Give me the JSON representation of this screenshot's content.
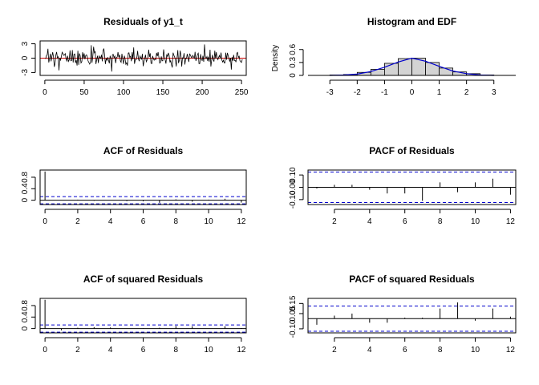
{
  "colors": {
    "resid_line": "#000000",
    "zero_line": "#cc0000",
    "conf_band": "#0000cc",
    "hist_fill": "#d3d3d3",
    "edf_line": "#0000cc"
  },
  "chart_data": [
    {
      "type": "line",
      "title": "Residuals of y1_t",
      "xticks": [
        0,
        50,
        100,
        150,
        200,
        250
      ],
      "yticks": [
        -3,
        0,
        3
      ],
      "xlim": [
        -6,
        256
      ],
      "ylim": [
        -3.6,
        3.6
      ],
      "n": 250,
      "zero_line": 0,
      "series": [
        {
          "values": [
            -0.16,
            0.5,
            0.67,
            1.96,
            -0.9,
            -0.1,
            0.93,
            -0.65,
            0.36,
            1.24,
            0.27,
            -1.82,
            -1.12,
            0.63,
            1.29,
            0.02,
            0.29,
            -2.54,
            0.01,
            -0.42,
            0.34,
            1.24,
            0.98,
            0.57,
            0.66,
            0.93,
            -0.21,
            -0.61,
            0.5,
            -0.68,
            -0.35,
            1.63,
            -0.55,
            -0.5,
            1.69,
            -0.91,
            0.81,
            0.89,
            -1.0,
            -0.4,
            -1.54,
            1.54,
            -1.41,
            0.98,
            0.48,
            -1.01,
            -0.76,
            1.24,
            -0.07,
            0.99,
            -0.21,
            0.55,
            0.68,
            0.25,
            -0.57,
            -0.88,
            -1.24,
            -0.85,
            2.7,
            -0.97,
            0.36,
            2.38,
            1.11,
            1.36,
            -1.23,
            -0.26,
            0.49,
            -1.02,
            0.45,
            0.19,
            -0.06,
            0.71,
            -0.67,
            1.59,
            2.01,
            0.62,
            -1.22,
            -0.13,
            -0.45,
            0.19,
            -0.44,
            -1.09,
            0.48,
            -0.2,
            -2.79,
            0.72,
            0.79,
            0.09,
            0.44,
            -1.04,
            0.1,
            0.22,
            1.27,
            0.17,
            0.72,
            -0.61,
            -0.87,
            0.92,
            -0.26,
            -1.2,
            0.51,
            -0.16,
            -1.27,
            -0.95,
            -1.56,
            1.05,
            1.13,
            0.18,
            0.4,
            -0.63,
            1.24,
            -0.25,
            2.23,
            -1.19,
            -0.33,
            -0.36,
            0.28,
            1.52,
            -0.17,
            -0.63,
            0.44,
            0.02,
            -0.22,
            0.89,
            -1.67,
            -0.73,
            0.0,
            0.71,
            -0.75,
            -0.41,
            0.15,
            1.78,
            0.27,
            1.02,
            -1.08,
            -1.14,
            0.47,
            -0.12,
            -0.44,
            -0.16,
            -0.33,
            1.13,
            0.42,
            1.27,
            0.19,
            -1.04,
            -0.87,
            0.36,
            -0.56,
            -0.54,
            1.82,
            0.37,
            -0.43,
            -1.14,
            0.8,
            0.32,
            1.11,
            0.55,
            -0.89,
            -0.49,
            -1.37,
            -1.96,
            1.14,
            0.57,
            0.27,
            -0.42,
            -1.72,
            0.02,
            1.68,
            -1.03,
            -0.44,
            1.58,
            0.56,
            -1.75,
            0.07,
            -0.03,
            1.04,
            -1.34,
            -0.05,
            -0.09,
            0.89,
            0.11,
            -0.79,
            0.86,
            0.65,
            0.29,
            0.05,
            0.58,
            0.29,
            -0.03,
            1.31,
            -0.56,
            -0.1,
            0.79,
            1.03,
            -1.15,
            -1.14,
            0.84,
            -0.31,
            -0.5,
            0.48,
            -0.77,
            2.87,
            0.41,
            -0.12,
            0.31,
            -0.6,
            0.31,
            -0.76,
            1.76,
            -1.74,
            -0.56,
            0.68,
            -0.27,
            -0.71,
            1.56,
            -0.09,
            1.26,
            0.07,
            -0.32,
            0.21,
            0.55,
            -0.06,
            1.17,
            -0.38,
            -0.8,
            -0.44,
            -0.98,
            -1.0,
            1.14,
            -0.32,
            1.11,
            0.58,
            -0.06,
            -0.66,
            0.07,
            -2.38,
            0.22,
            -0.55,
            0.69,
            -0.48,
            -0.46,
            -0.83,
            1.03,
            1.21,
            0.14,
            0.39,
            -0.56,
            -0.75,
            -0.89,
            -0.24
          ]
        }
      ]
    },
    {
      "type": "histogram",
      "title": "Histogram and EDF",
      "ylabel": "Density",
      "xticks": [
        -3,
        -2,
        -1,
        0,
        1,
        2,
        3
      ],
      "yticks": [
        0.0,
        0.3,
        0.6
      ],
      "xlim": [
        -3.8,
        3.8
      ],
      "ylim": [
        0,
        0.8
      ],
      "bins": [
        {
          "from": -3.0,
          "to": -2.5,
          "density": 0.01
        },
        {
          "from": -2.5,
          "to": -2.0,
          "density": 0.02
        },
        {
          "from": -2.0,
          "to": -1.5,
          "density": 0.07
        },
        {
          "from": -1.5,
          "to": -1.0,
          "density": 0.14
        },
        {
          "from": -1.0,
          "to": -0.5,
          "density": 0.28
        },
        {
          "from": -0.5,
          "to": 0.0,
          "density": 0.39
        },
        {
          "from": 0.0,
          "to": 0.5,
          "density": 0.4
        },
        {
          "from": 0.5,
          "to": 1.0,
          "density": 0.3
        },
        {
          "from": 1.0,
          "to": 1.5,
          "density": 0.17
        },
        {
          "from": 1.5,
          "to": 2.0,
          "density": 0.08
        },
        {
          "from": 2.0,
          "to": 2.5,
          "density": 0.04
        },
        {
          "from": 2.5,
          "to": 3.0,
          "density": 0.01
        }
      ],
      "edf_line": {
        "x": [
          -3.0,
          -2.5,
          -2.0,
          -1.5,
          -1.0,
          -0.5,
          0.0,
          0.5,
          1.0,
          1.5,
          2.0,
          2.5,
          3.0
        ],
        "y": [
          0.0,
          0.01,
          0.03,
          0.09,
          0.19,
          0.31,
          0.4,
          0.33,
          0.21,
          0.1,
          0.04,
          0.01,
          0.0
        ]
      }
    },
    {
      "type": "bar",
      "title": "ACF of Residuals",
      "xticks": [
        0,
        2,
        4,
        6,
        8,
        10,
        12
      ],
      "yticks": [
        0.0,
        0.4,
        0.8
      ],
      "xlim": [
        -0.3,
        12.3
      ],
      "ylim": [
        -0.15,
        1.05
      ],
      "lags": [
        0,
        1,
        2,
        3,
        4,
        5,
        6,
        7,
        8,
        9,
        10,
        11,
        12
      ],
      "values": [
        1.0,
        -0.01,
        0.02,
        -0.02,
        0.0,
        -0.03,
        -0.04,
        -0.09,
        0.03,
        -0.05,
        0.02,
        0.05,
        -0.08
      ],
      "conf": 0.124
    },
    {
      "type": "bar",
      "title": "PACF of Residuals",
      "xticks": [
        2,
        4,
        6,
        8,
        10,
        12
      ],
      "yticks": [
        -0.1,
        0.0,
        0.1
      ],
      "ytick_labels": [
        "-0.10",
        "0.00",
        "0.10"
      ],
      "xlim": [
        0.5,
        12.3
      ],
      "ylim": [
        -0.14,
        0.14
      ],
      "lags": [
        1,
        2,
        3,
        4,
        5,
        6,
        7,
        8,
        9,
        10,
        11,
        12
      ],
      "values": [
        -0.01,
        0.02,
        0.02,
        -0.02,
        -0.05,
        -0.05,
        -0.11,
        0.04,
        -0.04,
        0.04,
        0.07,
        -0.06
      ],
      "conf": 0.124
    },
    {
      "type": "bar",
      "title": "ACF of squared Residuals",
      "xticks": [
        0,
        2,
        4,
        6,
        8,
        10,
        12
      ],
      "yticks": [
        0.0,
        0.4,
        0.8
      ],
      "xlim": [
        -0.3,
        12.3
      ],
      "ylim": [
        -0.15,
        1.05
      ],
      "lags": [
        0,
        1,
        2,
        3,
        4,
        5,
        6,
        7,
        8,
        9,
        10,
        11,
        12
      ],
      "values": [
        1.0,
        -0.06,
        0.03,
        0.05,
        0.04,
        0.0,
        0.01,
        0.03,
        0.09,
        0.08,
        -0.01,
        0.08,
        0.02
      ],
      "conf": 0.124
    },
    {
      "type": "bar",
      "title": "PACF of squared Residuals",
      "xticks": [
        2,
        4,
        6,
        8,
        10,
        12
      ],
      "yticks": [
        -0.1,
        0.05,
        0.15
      ],
      "ytick_labels": [
        "-0.10",
        "0.05",
        "0.15"
      ],
      "xlim": [
        0.5,
        12.3
      ],
      "ylim": [
        -0.14,
        0.2
      ],
      "lags": [
        1,
        2,
        3,
        4,
        5,
        6,
        7,
        8,
        9,
        10,
        11,
        12
      ],
      "values": [
        -0.06,
        0.03,
        0.05,
        -0.04,
        -0.04,
        0.01,
        0.01,
        0.1,
        0.16,
        -0.02,
        0.1,
        0.02
      ],
      "conf": 0.124
    }
  ]
}
